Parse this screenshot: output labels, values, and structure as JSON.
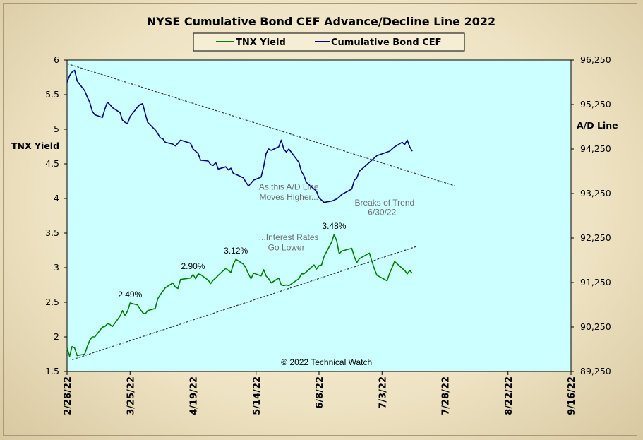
{
  "chart_data": {
    "type": "line",
    "title": "NYSE Cumulative  Bond CEF Advance/Decline  Line 2022",
    "legend": {
      "placement": "top-center",
      "entries": [
        "TNX Yield",
        "Cumulative Bond CEF"
      ]
    },
    "y_left": {
      "label": "TNX  Yield",
      "range": [
        1.5,
        6
      ],
      "ticks": [
        "1.5",
        "2",
        "2.5",
        "3",
        "3.5",
        "4",
        "4.5",
        "5",
        "5.5",
        "6"
      ]
    },
    "y_right": {
      "label": "A/D Line",
      "range": [
        89250,
        96250
      ],
      "ticks": [
        "89,250",
        "90,250",
        "91,250",
        "92,250",
        "93,250",
        "94,250",
        "95,250",
        "96,250"
      ]
    },
    "x_axis": {
      "range": [
        "2022-02-28",
        "2022-09-16"
      ],
      "ticks": [
        "2/28/22",
        "3/25/22",
        "4/19/22",
        "5/14/22",
        "6/8/22",
        "7/3/22",
        "7/28/22",
        "8/22/22",
        "9/16/22"
      ]
    },
    "grid": false,
    "plot_background": "#ccffff",
    "colors": {
      "tnx": "#008000",
      "cef": "#000080",
      "trend": "#333333",
      "title_bar": "#f5eed5"
    },
    "series": [
      {
        "name": "TNX Yield",
        "axis": "left",
        "points": [
          [
            "2022-02-28",
            1.84
          ],
          [
            "2022-03-01",
            1.72
          ],
          [
            "2022-03-02",
            1.86
          ],
          [
            "2022-03-03",
            1.84
          ],
          [
            "2022-03-04",
            1.73
          ],
          [
            "2022-03-07",
            1.75
          ],
          [
            "2022-03-08",
            1.86
          ],
          [
            "2022-03-09",
            1.95
          ],
          [
            "2022-03-10",
            2.0
          ],
          [
            "2022-03-11",
            2.0
          ],
          [
            "2022-03-14",
            2.14
          ],
          [
            "2022-03-15",
            2.15
          ],
          [
            "2022-03-16",
            2.19
          ],
          [
            "2022-03-17",
            2.18
          ],
          [
            "2022-03-18",
            2.15
          ],
          [
            "2022-03-21",
            2.3
          ],
          [
            "2022-03-22",
            2.38
          ],
          [
            "2022-03-23",
            2.31
          ],
          [
            "2022-03-24",
            2.37
          ],
          [
            "2022-03-25",
            2.49
          ],
          [
            "2022-03-28",
            2.46
          ],
          [
            "2022-03-29",
            2.4
          ],
          [
            "2022-03-30",
            2.35
          ],
          [
            "2022-03-31",
            2.33
          ],
          [
            "2022-04-01",
            2.38
          ],
          [
            "2022-04-04",
            2.41
          ],
          [
            "2022-04-05",
            2.55
          ],
          [
            "2022-04-06",
            2.61
          ],
          [
            "2022-04-07",
            2.66
          ],
          [
            "2022-04-08",
            2.71
          ],
          [
            "2022-04-11",
            2.78
          ],
          [
            "2022-04-12",
            2.72
          ],
          [
            "2022-04-13",
            2.7
          ],
          [
            "2022-04-14",
            2.83
          ],
          [
            "2022-04-18",
            2.85
          ],
          [
            "2022-04-19",
            2.9
          ],
          [
            "2022-04-20",
            2.84
          ],
          [
            "2022-04-21",
            2.91
          ],
          [
            "2022-04-22",
            2.9
          ],
          [
            "2022-04-25",
            2.82
          ],
          [
            "2022-04-26",
            2.77
          ],
          [
            "2022-04-27",
            2.82
          ],
          [
            "2022-04-28",
            2.85
          ],
          [
            "2022-04-29",
            2.89
          ],
          [
            "2022-05-02",
            2.99
          ],
          [
            "2022-05-03",
            2.96
          ],
          [
            "2022-05-04",
            2.93
          ],
          [
            "2022-05-05",
            3.05
          ],
          [
            "2022-05-06",
            3.12
          ],
          [
            "2022-05-09",
            3.05
          ],
          [
            "2022-05-10",
            2.99
          ],
          [
            "2022-05-11",
            2.91
          ],
          [
            "2022-05-12",
            2.84
          ],
          [
            "2022-05-13",
            2.92
          ],
          [
            "2022-05-16",
            2.88
          ],
          [
            "2022-05-17",
            2.97
          ],
          [
            "2022-05-18",
            2.88
          ],
          [
            "2022-05-19",
            2.84
          ],
          [
            "2022-05-20",
            2.78
          ],
          [
            "2022-05-23",
            2.85
          ],
          [
            "2022-05-24",
            2.75
          ],
          [
            "2022-05-25",
            2.74
          ],
          [
            "2022-05-26",
            2.75
          ],
          [
            "2022-05-27",
            2.74
          ],
          [
            "2022-05-31",
            2.84
          ],
          [
            "2022-06-01",
            2.91
          ],
          [
            "2022-06-02",
            2.91
          ],
          [
            "2022-06-03",
            2.94
          ],
          [
            "2022-06-06",
            3.04
          ],
          [
            "2022-06-07",
            2.98
          ],
          [
            "2022-06-08",
            3.03
          ],
          [
            "2022-06-09",
            3.04
          ],
          [
            "2022-06-10",
            3.16
          ],
          [
            "2022-06-13",
            3.37
          ],
          [
            "2022-06-14",
            3.48
          ],
          [
            "2022-06-15",
            3.39
          ],
          [
            "2022-06-16",
            3.2
          ],
          [
            "2022-06-17",
            3.24
          ],
          [
            "2022-06-21",
            3.28
          ],
          [
            "2022-06-22",
            3.16
          ],
          [
            "2022-06-23",
            3.07
          ],
          [
            "2022-06-24",
            3.13
          ],
          [
            "2022-06-27",
            3.19
          ],
          [
            "2022-06-28",
            3.21
          ],
          [
            "2022-06-29",
            3.09
          ],
          [
            "2022-06-30",
            2.98
          ],
          [
            "2022-07-01",
            2.89
          ],
          [
            "2022-07-05",
            2.81
          ],
          [
            "2022-07-06",
            2.92
          ],
          [
            "2022-07-07",
            3.0
          ],
          [
            "2022-07-08",
            3.09
          ],
          [
            "2022-07-11",
            2.99
          ],
          [
            "2022-07-12",
            2.96
          ],
          [
            "2022-07-13",
            2.91
          ],
          [
            "2022-07-14",
            2.96
          ],
          [
            "2022-07-15",
            2.92
          ]
        ]
      },
      {
        "name": "Cumulative Bond CEF",
        "axis": "right",
        "points": [
          [
            "2022-02-28",
            95750
          ],
          [
            "2022-03-01",
            95900
          ],
          [
            "2022-03-02",
            95980
          ],
          [
            "2022-03-03",
            96020
          ],
          [
            "2022-03-04",
            95780
          ],
          [
            "2022-03-07",
            95560
          ],
          [
            "2022-03-08",
            95420
          ],
          [
            "2022-03-09",
            95300
          ],
          [
            "2022-03-10",
            95100
          ],
          [
            "2022-03-11",
            95020
          ],
          [
            "2022-03-14",
            94960
          ],
          [
            "2022-03-15",
            95150
          ],
          [
            "2022-03-16",
            95300
          ],
          [
            "2022-03-17",
            95250
          ],
          [
            "2022-03-18",
            95180
          ],
          [
            "2022-03-21",
            95070
          ],
          [
            "2022-03-22",
            94900
          ],
          [
            "2022-03-23",
            94850
          ],
          [
            "2022-03-24",
            94820
          ],
          [
            "2022-03-25",
            94980
          ],
          [
            "2022-03-28",
            95200
          ],
          [
            "2022-03-29",
            95250
          ],
          [
            "2022-03-30",
            95270
          ],
          [
            "2022-03-31",
            95050
          ],
          [
            "2022-04-01",
            94850
          ],
          [
            "2022-04-04",
            94680
          ],
          [
            "2022-04-05",
            94600
          ],
          [
            "2022-04-06",
            94500
          ],
          [
            "2022-04-07",
            94480
          ],
          [
            "2022-04-08",
            94400
          ],
          [
            "2022-04-11",
            94360
          ],
          [
            "2022-04-12",
            94320
          ],
          [
            "2022-04-13",
            94380
          ],
          [
            "2022-04-14",
            94450
          ],
          [
            "2022-04-18",
            94380
          ],
          [
            "2022-04-19",
            94250
          ],
          [
            "2022-04-20",
            94200
          ],
          [
            "2022-04-21",
            94150
          ],
          [
            "2022-04-22",
            94000
          ],
          [
            "2022-04-25",
            93980
          ],
          [
            "2022-04-26",
            93900
          ],
          [
            "2022-04-27",
            93880
          ],
          [
            "2022-04-28",
            93950
          ],
          [
            "2022-04-29",
            93800
          ],
          [
            "2022-05-02",
            93850
          ],
          [
            "2022-05-03",
            93780
          ],
          [
            "2022-05-04",
            93820
          ],
          [
            "2022-05-05",
            93700
          ],
          [
            "2022-05-06",
            93680
          ],
          [
            "2022-05-09",
            93600
          ],
          [
            "2022-05-10",
            93500
          ],
          [
            "2022-05-11",
            93420
          ],
          [
            "2022-05-12",
            93480
          ],
          [
            "2022-05-13",
            93550
          ],
          [
            "2022-05-16",
            93620
          ],
          [
            "2022-05-17",
            93850
          ],
          [
            "2022-05-18",
            94150
          ],
          [
            "2022-05-19",
            94250
          ],
          [
            "2022-05-20",
            94220
          ],
          [
            "2022-05-23",
            94300
          ],
          [
            "2022-05-24",
            94450
          ],
          [
            "2022-05-25",
            94250
          ],
          [
            "2022-05-26",
            94180
          ],
          [
            "2022-05-27",
            94250
          ],
          [
            "2022-05-31",
            93950
          ],
          [
            "2022-06-01",
            93750
          ],
          [
            "2022-06-02",
            93650
          ],
          [
            "2022-06-03",
            93500
          ],
          [
            "2022-06-06",
            93350
          ],
          [
            "2022-06-07",
            93300
          ],
          [
            "2022-06-08",
            93150
          ],
          [
            "2022-06-09",
            93100
          ],
          [
            "2022-06-10",
            93050
          ],
          [
            "2022-06-13",
            93080
          ],
          [
            "2022-06-14",
            93100
          ],
          [
            "2022-06-15",
            93130
          ],
          [
            "2022-06-16",
            93170
          ],
          [
            "2022-06-17",
            93230
          ],
          [
            "2022-06-21",
            93350
          ],
          [
            "2022-06-22",
            93550
          ],
          [
            "2022-06-23",
            93600
          ],
          [
            "2022-06-24",
            93750
          ],
          [
            "2022-06-27",
            93900
          ],
          [
            "2022-06-28",
            93950
          ],
          [
            "2022-06-29",
            94000
          ],
          [
            "2022-06-30",
            94050
          ],
          [
            "2022-07-01",
            94100
          ],
          [
            "2022-07-05",
            94180
          ],
          [
            "2022-07-06",
            94200
          ],
          [
            "2022-07-07",
            94250
          ],
          [
            "2022-07-08",
            94300
          ],
          [
            "2022-07-11",
            94400
          ],
          [
            "2022-07-12",
            94350
          ],
          [
            "2022-07-13",
            94450
          ],
          [
            "2022-07-14",
            94300
          ],
          [
            "2022-07-15",
            94200
          ]
        ]
      }
    ],
    "trendlines": [
      {
        "axis": "right",
        "from": [
          "2022-02-28",
          96170
        ],
        "to": [
          "2022-08-01",
          93420
        ],
        "style": "dashed"
      },
      {
        "axis": "left",
        "from": [
          "2022-03-02",
          1.67
        ],
        "to": [
          "2022-07-17",
          3.31
        ],
        "style": "dashed"
      }
    ],
    "annotations": [
      {
        "text": "2.49%",
        "x": "2022-03-25",
        "y": 2.49,
        "axis": "left",
        "color": "black"
      },
      {
        "text": "2.90%",
        "x": "2022-04-19",
        "y": 2.9,
        "axis": "left",
        "color": "black"
      },
      {
        "text": "3.12%",
        "x": "2022-05-06",
        "y": 3.12,
        "axis": "left",
        "color": "black"
      },
      {
        "text": "3.48%",
        "x": "2022-06-14",
        "y": 3.48,
        "axis": "left",
        "color": "black"
      },
      {
        "text": "As this A/D Line",
        "x": "2022-05-27",
        "y": 4.13,
        "axis": "left",
        "color": "gray"
      },
      {
        "text": "Moves Higher...",
        "x": "2022-05-27",
        "y": 3.98,
        "axis": "left",
        "color": "gray"
      },
      {
        "text": "...Interest Rates",
        "x": "2022-05-27",
        "y": 3.4,
        "axis": "left",
        "color": "gray"
      },
      {
        "text": "Go Lower",
        "x": "2022-05-26",
        "y": 3.25,
        "axis": "left",
        "color": "gray"
      },
      {
        "text": "Breaks of Trend",
        "x": "2022-07-04",
        "y": 3.9,
        "axis": "left",
        "color": "gray"
      },
      {
        "text": "6/30/22",
        "x": "2022-07-03",
        "y": 3.76,
        "axis": "left",
        "color": "gray"
      },
      {
        "text": "© 2022 Technical  Watch",
        "x": "2022-06-11",
        "y": 1.59,
        "axis": "left",
        "color": "black"
      }
    ]
  }
}
